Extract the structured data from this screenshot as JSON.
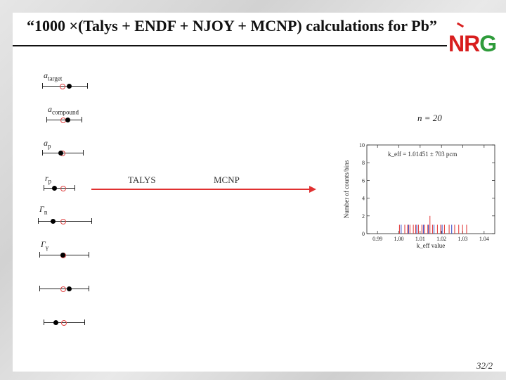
{
  "slide": {
    "title": "“1000 ×(Talys + ENDF + NJOY + MCNP) calculations for Pb”",
    "logo": {
      "n": "N",
      "r": "R",
      "g": "G"
    },
    "page_number": "32/2"
  },
  "parameters": [
    {
      "symbol": "a",
      "sub": "target",
      "black": 0.6,
      "red": 0.45
    },
    {
      "symbol": "a",
      "sub": "compound",
      "black": 0.6,
      "red": 0.48
    },
    {
      "symbol": "a",
      "sub": "p",
      "black": 0.45,
      "red": 0.5
    },
    {
      "symbol": "r",
      "sub": "p",
      "black": 0.35,
      "red": 0.63
    },
    {
      "symbol": "Γ",
      "sub": "n",
      "black": 0.28,
      "red": 0.48
    },
    {
      "symbol": "Γ",
      "sub": "γ",
      "black": 0.48,
      "red": 0.48
    },
    {
      "symbol": "",
      "sub": "",
      "black": 0.6,
      "red": 0.48
    },
    {
      "symbol": "",
      "sub": "",
      "black": 0.3,
      "red": 0.5
    }
  ],
  "flow": {
    "step1": "TALYS",
    "step2": "MCNP"
  },
  "n_label": "n = 20",
  "chart_data": {
    "type": "bar",
    "annotation": "k_eff = 1.01451 ± 703 pcm",
    "xlabel": "k_eff value",
    "ylabel": "Number of counts/bins",
    "xlim": [
      0.985,
      1.045
    ],
    "ylim": [
      0,
      10
    ],
    "xticks": [
      "0.99",
      "1.00",
      "1.01",
      "1.02",
      "1.03",
      "1.04"
    ],
    "xtick_values": [
      0.99,
      1.0,
      1.01,
      1.02,
      1.03,
      1.04
    ],
    "yticks": [
      "0",
      "2",
      "4",
      "6",
      "8",
      "10"
    ],
    "ytick_values": [
      0,
      2,
      4,
      6,
      8,
      10
    ],
    "series": [
      {
        "color": "#e03030",
        "x": [
          1.0003,
          1.0028,
          1.0041,
          1.0052,
          1.0068,
          1.0079,
          1.0092,
          1.0108,
          1.0121,
          1.0136,
          1.0146,
          1.0158,
          1.0181,
          1.0196,
          1.0214,
          1.0236,
          1.0262,
          1.0281,
          1.0299,
          1.0318
        ],
        "values": [
          1,
          1,
          1,
          1,
          1,
          1,
          1,
          1,
          1,
          1,
          2,
          1,
          1,
          1,
          1,
          1,
          1,
          1,
          1,
          1
        ]
      },
      {
        "color": "#3040c0",
        "x": [
          1.0011,
          1.0046,
          1.0084,
          1.0115,
          1.0139,
          1.0165,
          1.0203,
          1.0248
        ],
        "values": [
          1,
          1,
          1,
          1,
          1,
          1,
          1,
          1
        ]
      }
    ]
  }
}
